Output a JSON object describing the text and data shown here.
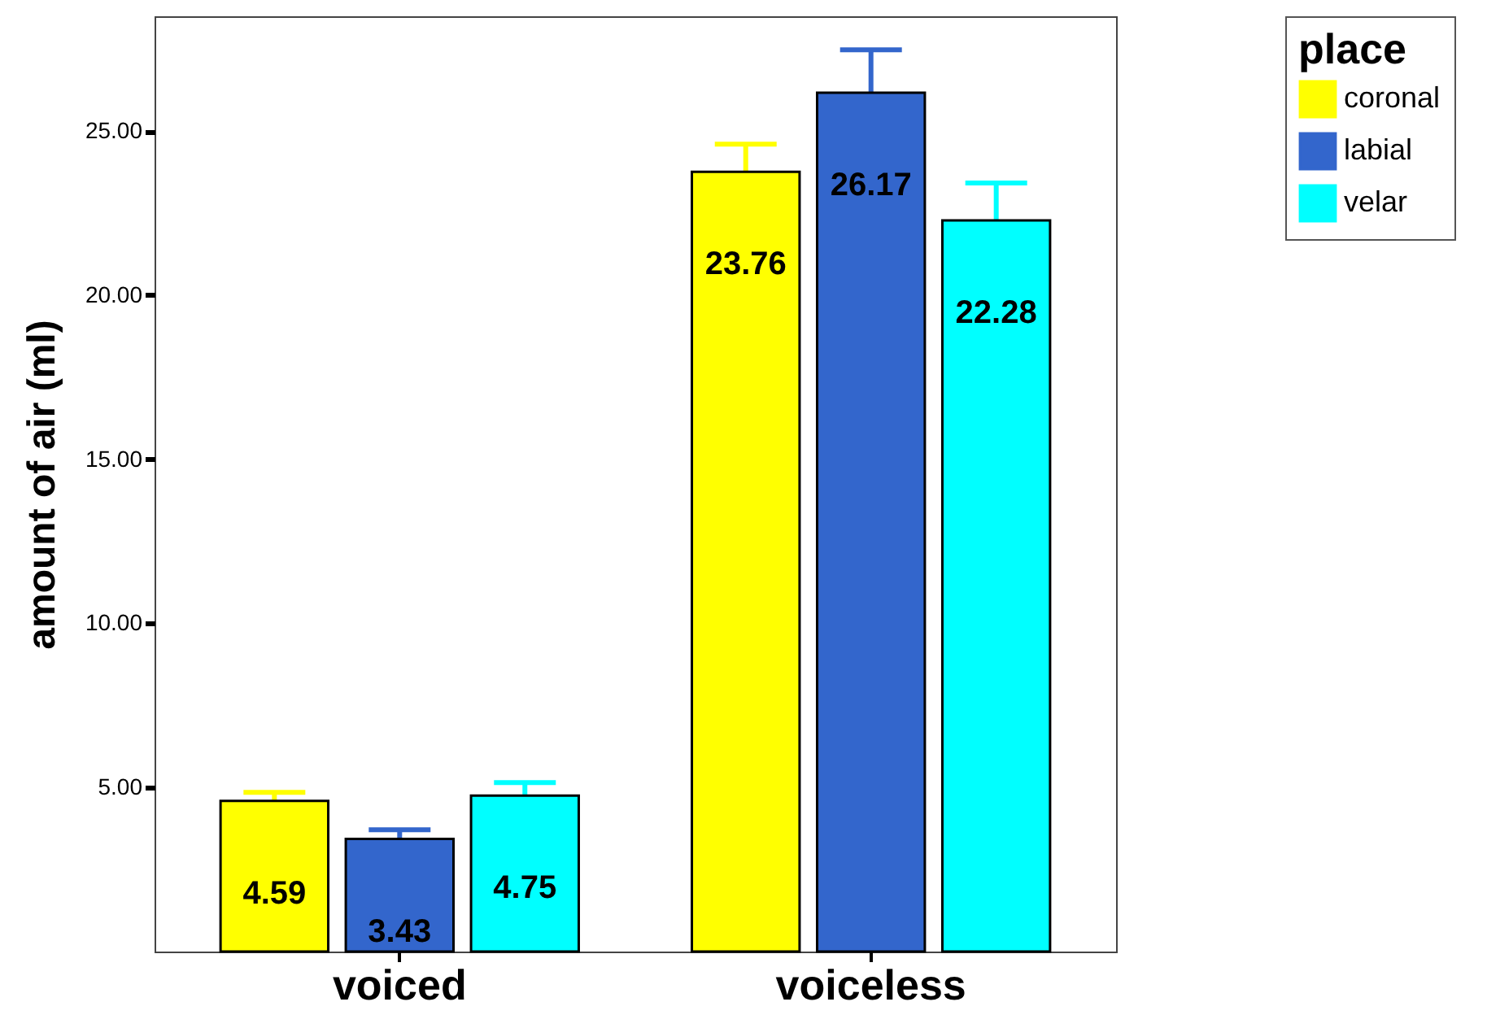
{
  "chart_data": {
    "type": "bar",
    "categories": [
      "voiced",
      "voiceless"
    ],
    "series": [
      {
        "name": "coronal",
        "color": "#ffff00",
        "values": [
          4.59,
          23.76
        ],
        "errors": [
          0.26,
          0.84
        ]
      },
      {
        "name": "labial",
        "color": "#3366cc",
        "values": [
          3.43,
          26.17
        ],
        "errors": [
          0.28,
          1.31
        ]
      },
      {
        "name": "velar",
        "color": "#00ffff",
        "values": [
          4.75,
          22.28
        ],
        "errors": [
          0.4,
          1.14
        ]
      }
    ],
    "ylabel": "amount of air (ml)",
    "legend_title": "place",
    "legend": "top right",
    "ylim": [
      0,
      28.5
    ],
    "yticks": [
      {
        "value": 5,
        "label": "5.00"
      },
      {
        "value": 10,
        "label": "10.00"
      },
      {
        "value": 15,
        "label": "15.00"
      },
      {
        "value": 20,
        "label": "20.00"
      },
      {
        "value": 25,
        "label": "25.00"
      }
    ],
    "data_labels": true,
    "grid": false
  }
}
